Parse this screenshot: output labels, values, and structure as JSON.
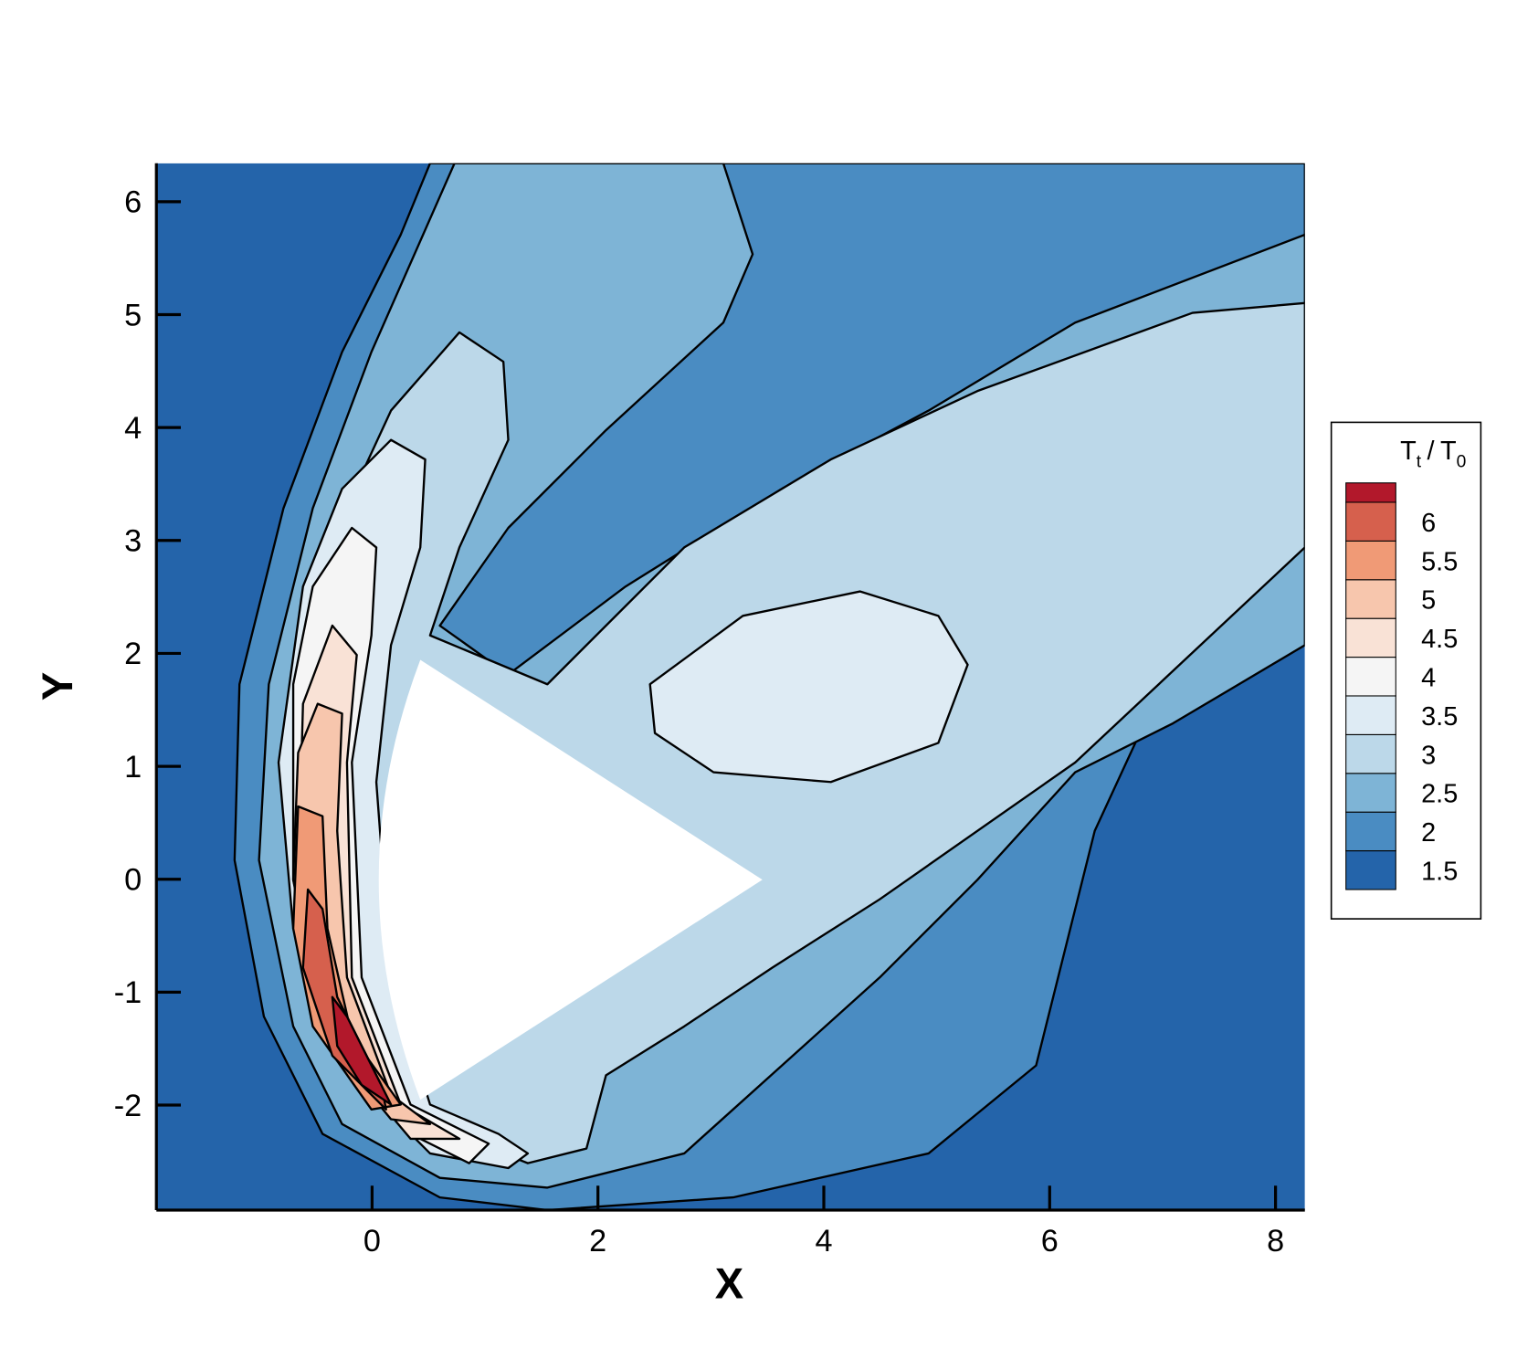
{
  "chart_data": {
    "type": "contour",
    "xlabel": "X",
    "ylabel": "Y",
    "xlim": [
      -1.91,
      8.26
    ],
    "ylim": [
      -2.93,
      6.34
    ],
    "xticks": [
      0,
      2,
      4,
      6,
      8
    ],
    "yticks": [
      -2,
      -1,
      0,
      1,
      2,
      3,
      4,
      5,
      6
    ],
    "legend_title": [
      "T",
      "t",
      "/",
      "T",
      "0"
    ],
    "levels": [
      1.5,
      2,
      2.5,
      3,
      3.5,
      4,
      4.5,
      5,
      5.5,
      6
    ],
    "colors": [
      "#2464aa",
      "#4a8cc2",
      "#7eb4d6",
      "#bcd8e9",
      "#deebf4",
      "#f5f5f5",
      "#f9e2d6",
      "#f7c6ad",
      "#f09a76",
      "#d6604d",
      "#b2182b"
    ],
    "legend": "right"
  }
}
